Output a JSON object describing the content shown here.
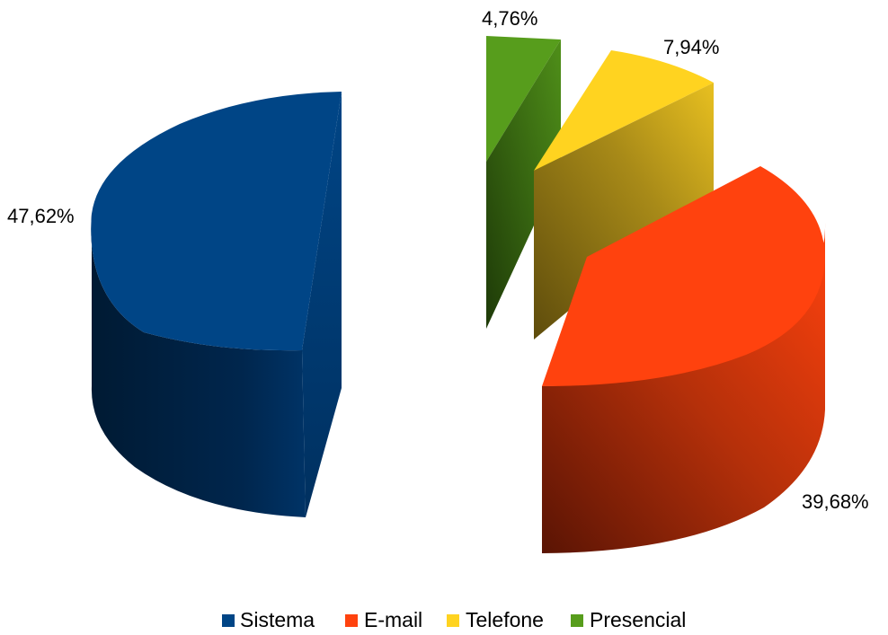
{
  "chart_data": {
    "type": "pie",
    "style": "3d-exploded",
    "title": "",
    "legend_position": "bottom",
    "slices": [
      {
        "name": "Sistema",
        "value": 47.62,
        "label": "47,62%",
        "color": "#004586"
      },
      {
        "name": "E-mail",
        "value": 39.68,
        "label": "39,68%",
        "color": "#ff420e"
      },
      {
        "name": "Telefone",
        "value": 7.94,
        "label": "7,94%",
        "color": "#ffd320"
      },
      {
        "name": "Presencial",
        "value": 4.76,
        "label": "4,76%",
        "color": "#579d1c"
      }
    ]
  }
}
